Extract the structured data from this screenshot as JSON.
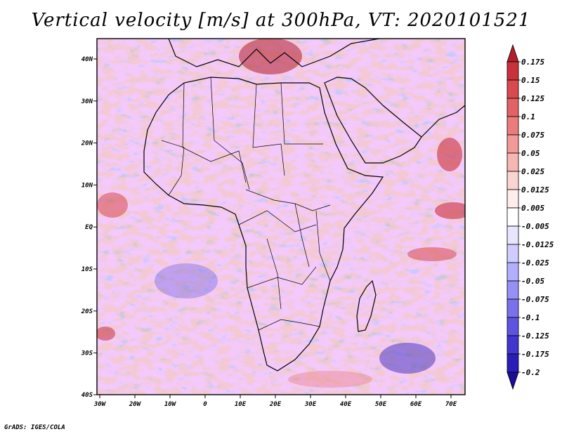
{
  "title": "Vertical velocity [m/s] at 300hPa, VT: 2020101521",
  "credit": "GrADS: IGES/COLA",
  "map": {
    "region": "Africa",
    "lon_ticks": [
      "30W",
      "20W",
      "10W",
      "0",
      "10E",
      "20E",
      "30E",
      "40E",
      "50E",
      "60E",
      "70E"
    ],
    "lat_ticks": [
      "40N",
      "30N",
      "20N",
      "10N",
      "EQ",
      "10S",
      "20S",
      "30S",
      "40S"
    ],
    "lon_range": [
      -30,
      75
    ],
    "lat_range": [
      -40,
      45
    ]
  },
  "colorbar": {
    "levels": [
      "0.175",
      "0.15",
      "0.125",
      "0.1",
      "0.075",
      "0.05",
      "0.025",
      "0.0125",
      "0.005",
      "-0.005",
      "-0.0125",
      "-0.025",
      "-0.05",
      "-0.075",
      "-0.1",
      "-0.125",
      "-0.175",
      "-0.2"
    ],
    "colors": [
      "#b31e2a",
      "#c9323a",
      "#d94a4e",
      "#e46264",
      "#ec7c7c",
      "#f29a98",
      "#f6b6b2",
      "#fad4d0",
      "#fdeeec",
      "#ffffff",
      "#e8e6ff",
      "#cfccff",
      "#b3afff",
      "#9690f6",
      "#7a72ec",
      "#5e54e0",
      "#4136cf",
      "#2a1db8",
      "#1a0e98"
    ]
  }
}
